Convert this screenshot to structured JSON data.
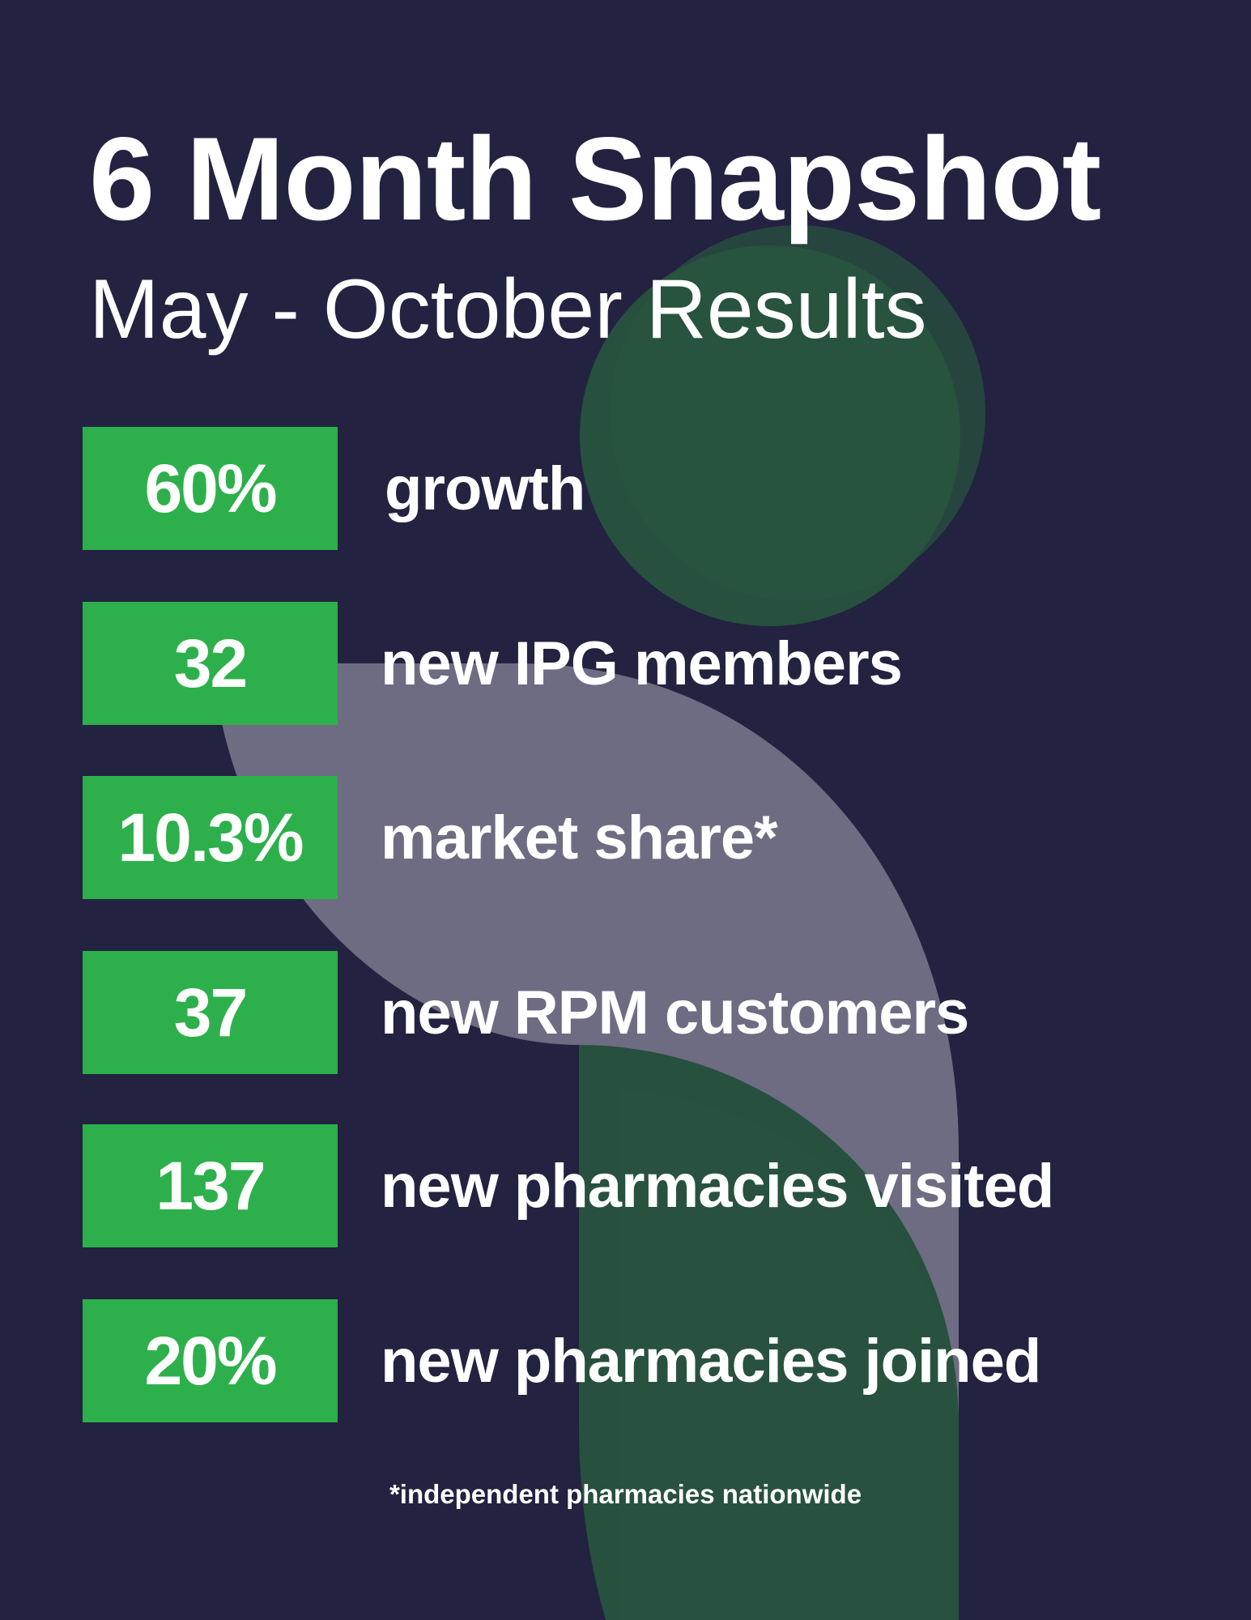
{
  "header": {
    "title": "6 Month Snapshot",
    "subtitle": "May - October Results"
  },
  "stats": [
    {
      "value": "60%",
      "label": "growth"
    },
    {
      "value": "32",
      "label": "new IPG members"
    },
    {
      "value": "10.3%",
      "label": "market share*"
    },
    {
      "value": "37",
      "label": "new RPM customers"
    },
    {
      "value": "137",
      "label": "new pharmacies visited"
    },
    {
      "value": "20%",
      "label": "new pharmacies joined"
    }
  ],
  "footnote": "*independent pharmacies nationwide",
  "colors": {
    "background": "#232240",
    "accent": "#2db04b",
    "logo_green": "#285241",
    "logo_gray": "#6e6c82"
  }
}
